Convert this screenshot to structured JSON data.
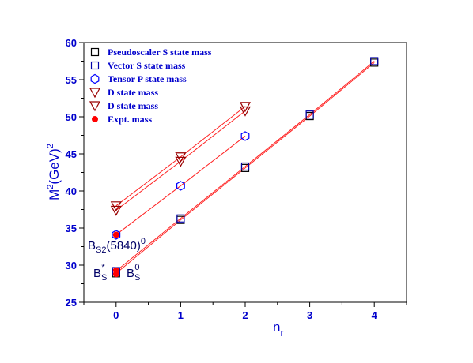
{
  "chart_data": {
    "type": "scatter",
    "xlabel": "n",
    "xlabel_sub": "r",
    "ylabel_main": "M",
    "ylabel_sup": "2",
    "ylabel_rest": "(GeV)",
    "ylabel_sup2": "2",
    "xlim": [
      -0.5,
      4.5
    ],
    "ylim": [
      25,
      60
    ],
    "xticks": [
      0,
      1,
      2,
      3,
      4
    ],
    "yticks": [
      25,
      30,
      35,
      40,
      45,
      50,
      55,
      60
    ],
    "legend_position": "top-left",
    "colors": {
      "axis": "#0000cc",
      "line": "#ff2020",
      "vector": "#0000aa",
      "tensor": "#0000ff",
      "dstate": "#990000",
      "expt": "#ff0000",
      "pseudo": "#000000"
    },
    "series": [
      {
        "name": "Pseudoscaler S state mass",
        "marker": "square",
        "color": "#000000",
        "x": [
          0,
          1,
          2,
          3,
          4
        ],
        "y": [
          28.9,
          36.1,
          43.1,
          50.1,
          57.3
        ]
      },
      {
        "name": "Vector S state mass",
        "marker": "square",
        "color": "#0000aa",
        "x": [
          0,
          1,
          2,
          3,
          4
        ],
        "y": [
          29.2,
          36.3,
          43.3,
          50.3,
          57.5
        ]
      },
      {
        "name": "Tensor P state mass",
        "marker": "hexagon",
        "color": "#0000ff",
        "x": [
          0,
          1,
          2
        ],
        "y": [
          34.1,
          40.7,
          47.4
        ]
      },
      {
        "name": "D state mass",
        "marker": "triangle-down",
        "color": "#990000",
        "x": [
          0,
          1,
          2
        ],
        "y": [
          37.4,
          44.0,
          50.8
        ]
      },
      {
        "name": "D state mass",
        "marker": "triangle-down",
        "color": "#990000",
        "x": [
          0,
          1,
          2
        ],
        "y": [
          38.0,
          44.6,
          51.4
        ]
      },
      {
        "name": "Expt. mass",
        "marker": "dot",
        "color": "#ff0000",
        "x": [
          0,
          0,
          0
        ],
        "y": [
          28.8,
          29.3,
          34.1
        ]
      }
    ],
    "annotations": {
      "bs2": {
        "base": "B",
        "sub": "S2",
        "rest": "(5840)",
        "sup": "0"
      },
      "bs_star": {
        "base": "B",
        "sub": "S",
        "sup": "*"
      },
      "bs0": {
        "base": "B",
        "sub": "S",
        "sup": "0"
      }
    }
  }
}
